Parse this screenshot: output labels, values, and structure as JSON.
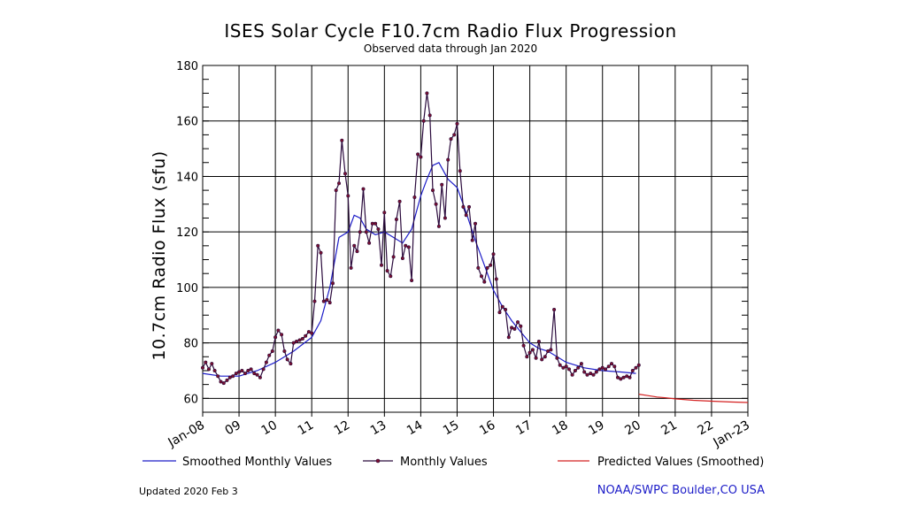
{
  "chart_data": {
    "type": "line",
    "title": "ISES Solar Cycle F10.7cm Radio Flux Progression",
    "subtitle": "Observed data through Jan 2020",
    "ylabel": "10.7cm Radio Flux (sfu)",
    "xlabel": "",
    "ylim": [
      55,
      180
    ],
    "yticks": [
      60,
      80,
      100,
      120,
      140,
      160,
      180
    ],
    "xlim": [
      2008.0,
      2023.0
    ],
    "xticks": [
      {
        "x": 2008,
        "label": "Jan-08"
      },
      {
        "x": 2009,
        "label": "09"
      },
      {
        "x": 2010,
        "label": "10"
      },
      {
        "x": 2011,
        "label": "11"
      },
      {
        "x": 2012,
        "label": "12"
      },
      {
        "x": 2013,
        "label": "13"
      },
      {
        "x": 2014,
        "label": "14"
      },
      {
        "x": 2015,
        "label": "15"
      },
      {
        "x": 2016,
        "label": "16"
      },
      {
        "x": 2017,
        "label": "17"
      },
      {
        "x": 2018,
        "label": "18"
      },
      {
        "x": 2019,
        "label": "19"
      },
      {
        "x": 2020,
        "label": "20"
      },
      {
        "x": 2021,
        "label": "21"
      },
      {
        "x": 2022,
        "label": "22"
      },
      {
        "x": 2023,
        "label": "Jan-23"
      }
    ],
    "grid": true,
    "legend_position": "bottom",
    "series": [
      {
        "name": "Smoothed Monthly Values",
        "color": "#1c1cc8",
        "style": "line",
        "x": [
          2008.0,
          2008.5,
          2009.0,
          2009.5,
          2010.0,
          2010.5,
          2011.0,
          2011.25,
          2011.5,
          2011.75,
          2012.0,
          2012.17,
          2012.33,
          2012.5,
          2012.75,
          2013.0,
          2013.25,
          2013.5,
          2013.75,
          2014.0,
          2014.17,
          2014.33,
          2014.5,
          2014.75,
          2015.0,
          2015.25,
          2015.5,
          2015.75,
          2016.0,
          2016.25,
          2016.5,
          2016.75,
          2017.0,
          2017.25,
          2017.5,
          2017.75,
          2018.0,
          2018.5,
          2019.0,
          2019.5,
          2019.92
        ],
        "y": [
          69.0,
          68.0,
          68.0,
          70.0,
          73.0,
          77.0,
          82.0,
          88.0,
          100.0,
          118.0,
          120.0,
          126.0,
          125.0,
          121.0,
          119.0,
          120.0,
          118.0,
          116.0,
          121.0,
          133.0,
          139.0,
          144.0,
          145.0,
          139.0,
          136.0,
          127.0,
          117.0,
          108.0,
          99.0,
          93.0,
          88.0,
          84.0,
          80.0,
          78.0,
          77.0,
          75.0,
          73.0,
          71.0,
          70.0,
          69.5,
          69.0
        ]
      },
      {
        "name": "Monthly Values",
        "color": "#2a0a3c",
        "style": "line+markers",
        "x": [
          2008.0,
          2008.08,
          2008.17,
          2008.25,
          2008.33,
          2008.42,
          2008.5,
          2008.58,
          2008.67,
          2008.75,
          2008.83,
          2008.92,
          2009.0,
          2009.08,
          2009.17,
          2009.25,
          2009.33,
          2009.42,
          2009.5,
          2009.58,
          2009.67,
          2009.75,
          2009.83,
          2009.92,
          2010.0,
          2010.08,
          2010.17,
          2010.25,
          2010.33,
          2010.42,
          2010.5,
          2010.58,
          2010.67,
          2010.75,
          2010.83,
          2010.92,
          2011.0,
          2011.08,
          2011.17,
          2011.25,
          2011.33,
          2011.42,
          2011.5,
          2011.58,
          2011.67,
          2011.75,
          2011.83,
          2011.92,
          2012.0,
          2012.08,
          2012.17,
          2012.25,
          2012.33,
          2012.42,
          2012.5,
          2012.58,
          2012.67,
          2012.75,
          2012.83,
          2012.92,
          2013.0,
          2013.08,
          2013.17,
          2013.25,
          2013.33,
          2013.42,
          2013.5,
          2013.58,
          2013.67,
          2013.75,
          2013.83,
          2013.92,
          2014.0,
          2014.08,
          2014.17,
          2014.25,
          2014.33,
          2014.42,
          2014.5,
          2014.58,
          2014.67,
          2014.75,
          2014.83,
          2014.92,
          2015.0,
          2015.08,
          2015.17,
          2015.25,
          2015.33,
          2015.42,
          2015.5,
          2015.58,
          2015.67,
          2015.75,
          2015.83,
          2015.92,
          2016.0,
          2016.08,
          2016.17,
          2016.25,
          2016.33,
          2016.42,
          2016.5,
          2016.58,
          2016.67,
          2016.75,
          2016.83,
          2016.92,
          2017.0,
          2017.08,
          2017.17,
          2017.25,
          2017.33,
          2017.42,
          2017.5,
          2017.58,
          2017.67,
          2017.75,
          2017.83,
          2017.92,
          2018.0,
          2018.08,
          2018.17,
          2018.25,
          2018.33,
          2018.42,
          2018.5,
          2018.58,
          2018.67,
          2018.75,
          2018.83,
          2018.92,
          2019.0,
          2019.08,
          2019.17,
          2019.25,
          2019.33,
          2019.42,
          2019.5,
          2019.58,
          2019.67,
          2019.75,
          2019.83,
          2019.92,
          2020.0
        ],
        "y": [
          71.0,
          73.0,
          70.5,
          72.5,
          70.0,
          68.0,
          66.0,
          65.5,
          66.5,
          67.5,
          68.0,
          69.0,
          69.5,
          70.0,
          69.0,
          70.0,
          70.5,
          69.0,
          68.5,
          67.5,
          70.5,
          73.0,
          75.5,
          77.0,
          82.0,
          84.5,
          83.0,
          77.0,
          74.0,
          72.5,
          80.0,
          80.5,
          81.0,
          81.5,
          82.5,
          84.0,
          83.5,
          95.0,
          115.0,
          112.5,
          95.0,
          95.5,
          94.5,
          101.5,
          135.0,
          137.5,
          153.0,
          141.0,
          133.0,
          107.0,
          115.0,
          113.0,
          120.0,
          135.5,
          120.0,
          116.0,
          123.0,
          123.0,
          121.0,
          108.0,
          127.0,
          106.0,
          104.0,
          111.0,
          124.5,
          131.0,
          110.5,
          115.0,
          114.5,
          102.5,
          132.5,
          148.0,
          147.0,
          160.0,
          170.0,
          162.0,
          135.0,
          130.0,
          122.0,
          137.0,
          125.0,
          146.0,
          153.5,
          155.0,
          159.0,
          142.0,
          129.0,
          126.0,
          129.0,
          117.0,
          123.0,
          107.0,
          104.0,
          102.0,
          107.0,
          108.0,
          112.0,
          103.0,
          91.0,
          93.0,
          92.0,
          82.0,
          85.5,
          85.0,
          87.5,
          86.0,
          79.0,
          75.0,
          76.5,
          77.5,
          74.5,
          80.5,
          74.0,
          75.0,
          77.0,
          77.5,
          92.0,
          74.5,
          72.0,
          71.0,
          71.5,
          70.5,
          68.5,
          70.0,
          71.0,
          72.5,
          69.5,
          68.5,
          69.0,
          68.5,
          69.5,
          70.5,
          71.0,
          70.5,
          71.5,
          72.5,
          71.5,
          67.5,
          67.0,
          67.5,
          68.0,
          67.5,
          70.0,
          71.0,
          72.0
        ]
      },
      {
        "name": "Predicted Values (Smoothed)",
        "color": "#d42020",
        "style": "line",
        "x": [
          2020.0,
          2020.25,
          2020.5,
          2020.75,
          2021.0,
          2021.5,
          2022.0,
          2022.5,
          2023.0
        ],
        "y": [
          61.5,
          61.0,
          60.5,
          60.2,
          59.8,
          59.3,
          59.0,
          58.7,
          58.5
        ]
      }
    ]
  },
  "footer": {
    "updated": "Updated 2020 Feb  3",
    "credit": "NOAA/SWPC Boulder,CO USA"
  }
}
